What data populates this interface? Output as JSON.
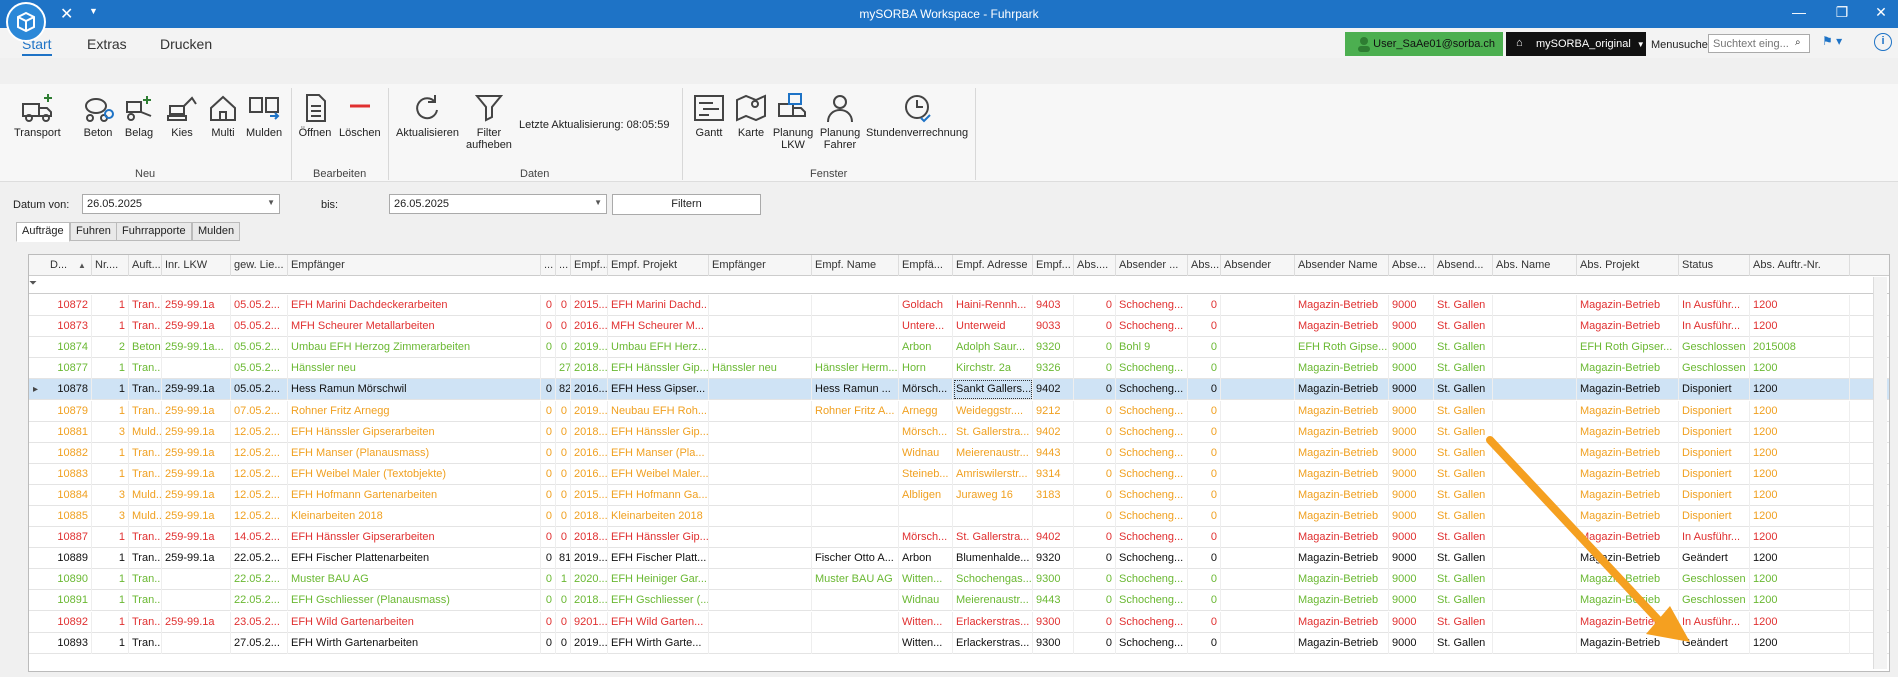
{
  "window": {
    "title": "mySORBA Workspace - Fuhrpark",
    "min_icon": "minimize-icon",
    "restore_icon": "restore-icon",
    "close_icon": "close-icon"
  },
  "ribbon_tabs": [
    "Start",
    "Extras",
    "Drucken"
  ],
  "topbar": {
    "user": "User_SaAe01@sorba.ch",
    "workspace": "mySORBA_original",
    "menusuche_label": "Menusuche",
    "search_placeholder": "Suchtext eing..."
  },
  "ribbon": {
    "neu": {
      "label": "Neu",
      "buttons": [
        "Transport",
        "Beton",
        "Belag",
        "Kies",
        "Multi",
        "Mulden"
      ]
    },
    "bearbeiten": {
      "label": "Bearbeiten",
      "buttons": [
        "Öffnen",
        "Löschen"
      ]
    },
    "daten": {
      "label": "Daten",
      "buttons": [
        "Aktualisieren",
        "Filter aufheben"
      ],
      "last_update_label": "Letzte Aktualisierung:",
      "last_update_time": "08:05:59"
    },
    "fenster": {
      "label": "Fenster",
      "buttons": [
        "Gantt",
        "Karte",
        "Planung LKW",
        "Planung Fahrer",
        "Stundenverrechnung"
      ]
    }
  },
  "filter": {
    "from_label": "Datum von:",
    "from_value": "26.05.2025",
    "to_label": "bis:",
    "to_value": "26.05.2025",
    "button": "Filtern"
  },
  "doc_tabs": [
    "Aufträge",
    "Fuhren",
    "Fuhrrapporte",
    "Mulden"
  ],
  "grid": {
    "columns": [
      "D...",
      "Nr....",
      "Auft...",
      "Inr. LKW",
      "gew. Lie...",
      "Empfänger",
      "...",
      "...",
      "Empf....",
      "Empf. Projekt",
      "Empfänger",
      "Empf. Name",
      "Empfä...",
      "Empf. Adresse",
      "Empf...",
      "Abs....",
      "Absender ...",
      "Abs...",
      "Absender",
      "Absender Name",
      "Abse...",
      "Absend...",
      "Abs. Name",
      "Abs. Projekt",
      "Status",
      "Abs. Auftr.-Nr."
    ],
    "rows": [
      {
        "color": "red",
        "c": [
          "10872",
          "1",
          "Tran...",
          "259-99.1a",
          "05.05.2...",
          "EFH Marini Dachdeckerarbeiten",
          "0",
          "0",
          "2015...",
          "EFH Marini Dachd...",
          "",
          "",
          "Goldach",
          "Haini-Rennh...",
          "9403",
          "0",
          "Schocheng...",
          "0",
          "",
          "Magazin-Betrieb",
          "9000",
          "St. Gallen",
          "",
          "Magazin-Betrieb",
          "In Ausführ...",
          "1200"
        ]
      },
      {
        "color": "red",
        "c": [
          "10873",
          "1",
          "Tran...",
          "259-99.1a",
          "05.05.2...",
          "MFH Scheurer Metallarbeiten",
          "0",
          "0",
          "2016...",
          "MFH Scheurer M...",
          "",
          "",
          "Untere...",
          "Unterweid",
          "9033",
          "0",
          "Schocheng...",
          "0",
          "",
          "Magazin-Betrieb",
          "9000",
          "St. Gallen",
          "",
          "Magazin-Betrieb",
          "In Ausführ...",
          "1200"
        ]
      },
      {
        "color": "green",
        "c": [
          "10874",
          "2",
          "Beton",
          "259-99.1a...",
          "05.05.2...",
          "Umbau EFH Herzog Zimmerarbeiten",
          "0",
          "0",
          "2019...",
          "Umbau EFH Herz...",
          "",
          "",
          "Arbon",
          "Adolph Saur...",
          "9320",
          "0",
          "Bohl 9",
          "0",
          "",
          "EFH Roth Gipse...",
          "9000",
          "St. Gallen",
          "",
          "EFH Roth Gipser...",
          "Geschlossen",
          "2015008"
        ]
      },
      {
        "color": "green",
        "c": [
          "10877",
          "1",
          "Tran...",
          "",
          "05.05.2...",
          "Hänssler neu",
          "",
          "27",
          "2018...",
          "EFH Hänssler Gip...",
          "Hänssler neu",
          "Hänssler Herm...",
          "Horn",
          "Kirchstr. 2a",
          "9326",
          "0",
          "Schocheng...",
          "0",
          "",
          "Magazin-Betrieb",
          "9000",
          "St. Gallen",
          "",
          "Magazin-Betrieb",
          "Geschlossen",
          "1200"
        ]
      },
      {
        "color": "black",
        "selected": true,
        "c": [
          "10878",
          "1",
          "Tran...",
          "259-99.1a",
          "05.05.2...",
          "Hess Ramun Mörschwil",
          "0",
          "82",
          "2016...",
          "EFH Hess Gipser...",
          "",
          "Hess Ramun ...",
          "Mörsch...",
          "Sankt Gallers...",
          "9402",
          "0",
          "Schocheng...",
          "0",
          "",
          "Magazin-Betrieb",
          "9000",
          "St. Gallen",
          "",
          "Magazin-Betrieb",
          "Disponiert",
          "1200"
        ]
      },
      {
        "color": "orange",
        "c": [
          "10879",
          "1",
          "Tran...",
          "259-99.1a",
          "07.05.2...",
          "Rohner Fritz Arnegg",
          "0",
          "0",
          "2019...",
          "Neubau EFH Roh...",
          "",
          "Rohner Fritz A...",
          "Arnegg",
          "Weideggstr....",
          "9212",
          "0",
          "Schocheng...",
          "0",
          "",
          "Magazin-Betrieb",
          "9000",
          "St. Gallen",
          "",
          "Magazin-Betrieb",
          "Disponiert",
          "1200"
        ]
      },
      {
        "color": "orange",
        "c": [
          "10881",
          "3",
          "Muld...",
          "259-99.1a",
          "12.05.2...",
          "EFH Hänssler Gipserarbeiten",
          "0",
          "0",
          "2018...",
          "EFH Hänssler Gip...",
          "",
          "",
          "Mörsch...",
          "St. Gallerstra...",
          "9402",
          "0",
          "Schocheng...",
          "0",
          "",
          "Magazin-Betrieb",
          "9000",
          "St. Gallen",
          "",
          "Magazin-Betrieb",
          "Disponiert",
          "1200"
        ]
      },
      {
        "color": "orange",
        "c": [
          "10882",
          "1",
          "Tran...",
          "259-99.1a",
          "12.05.2...",
          "EFH Manser (Planausmass)",
          "0",
          "0",
          "2016...",
          "EFH Manser (Pla...",
          "",
          "",
          "Widnau",
          "Meierenaustr...",
          "9443",
          "0",
          "Schocheng...",
          "0",
          "",
          "Magazin-Betrieb",
          "9000",
          "St. Gallen",
          "",
          "Magazin-Betrieb",
          "Disponiert",
          "1200"
        ]
      },
      {
        "color": "orange",
        "c": [
          "10883",
          "1",
          "Tran...",
          "259-99.1a",
          "12.05.2...",
          "EFH Weibel Maler (Textobjekte)",
          "0",
          "0",
          "2016...",
          "EFH Weibel Maler...",
          "",
          "",
          "Steineb...",
          "Amriswilerstr...",
          "9314",
          "0",
          "Schocheng...",
          "0",
          "",
          "Magazin-Betrieb",
          "9000",
          "St. Gallen",
          "",
          "Magazin-Betrieb",
          "Disponiert",
          "1200"
        ]
      },
      {
        "color": "orange",
        "c": [
          "10884",
          "3",
          "Muld...",
          "259-99.1a",
          "12.05.2...",
          "EFH Hofmann Gartenarbeiten",
          "0",
          "0",
          "2015...",
          "EFH Hofmann Ga...",
          "",
          "",
          "Albligen",
          "Juraweg 16",
          "3183",
          "0",
          "Schocheng...",
          "0",
          "",
          "Magazin-Betrieb",
          "9000",
          "St. Gallen",
          "",
          "Magazin-Betrieb",
          "Disponiert",
          "1200"
        ]
      },
      {
        "color": "orange",
        "c": [
          "10885",
          "3",
          "Muld...",
          "259-99.1a",
          "12.05.2...",
          "Kleinarbeiten 2018",
          "0",
          "0",
          "2018...",
          "Kleinarbeiten 2018",
          "",
          "",
          "",
          "",
          "",
          "0",
          "Schocheng...",
          "0",
          "",
          "Magazin-Betrieb",
          "9000",
          "St. Gallen",
          "",
          "Magazin-Betrieb",
          "Disponiert",
          "1200"
        ]
      },
      {
        "color": "red",
        "c": [
          "10887",
          "1",
          "Tran...",
          "259-99.1a",
          "14.05.2...",
          "EFH Hänssler Gipserarbeiten",
          "0",
          "0",
          "2018...",
          "EFH Hänssler Gip...",
          "",
          "",
          "Mörsch...",
          "St. Gallerstra...",
          "9402",
          "0",
          "Schocheng...",
          "0",
          "",
          "Magazin-Betrieb",
          "9000",
          "St. Gallen",
          "",
          "Magazin-Betrieb",
          "In Ausführ...",
          "1200"
        ]
      },
      {
        "color": "black",
        "c": [
          "10889",
          "1",
          "Tran...",
          "259-99.1a",
          "22.05.2...",
          "EFH Fischer Plattenarbeiten",
          "0",
          "81",
          "2019...",
          "EFH Fischer Platt...",
          "",
          "Fischer Otto A...",
          "Arbon",
          "Blumenhalde...",
          "9320",
          "0",
          "Schocheng...",
          "0",
          "",
          "Magazin-Betrieb",
          "9000",
          "St. Gallen",
          "",
          "Magazin-Betrieb",
          "Geändert",
          "1200"
        ]
      },
      {
        "color": "green",
        "c": [
          "10890",
          "1",
          "Tran...",
          "",
          "22.05.2...",
          "Muster BAU AG",
          "0",
          "1",
          "2020...",
          "EFH Heiniger Gar...",
          "",
          "Muster BAU AG",
          "Witten...",
          "Schochengas...",
          "9300",
          "0",
          "Schocheng...",
          "0",
          "",
          "Magazin-Betrieb",
          "9000",
          "St. Gallen",
          "",
          "Magazin-Betrieb",
          "Geschlossen",
          "1200"
        ]
      },
      {
        "color": "green",
        "c": [
          "10891",
          "1",
          "Tran...",
          "",
          "22.05.2...",
          "EFH Gschliesser (Planausmass)",
          "0",
          "0",
          "2018...",
          "EFH Gschliesser (...",
          "",
          "",
          "Widnau",
          "Meierenaustr...",
          "9443",
          "0",
          "Schocheng...",
          "0",
          "",
          "Magazin-Betrieb",
          "9000",
          "St. Gallen",
          "",
          "Magazin-Betrieb",
          "Geschlossen",
          "1200"
        ]
      },
      {
        "color": "red",
        "c": [
          "10892",
          "1",
          "Tran...",
          "259-99.1a",
          "23.05.2...",
          "EFH Wild Gartenarbeiten",
          "0",
          "0",
          "9201...",
          "EFH Wild Garten...",
          "",
          "",
          "Witten...",
          "Erlackerstras...",
          "9300",
          "0",
          "Schocheng...",
          "0",
          "",
          "Magazin-Betrieb",
          "9000",
          "St. Gallen",
          "",
          "Magazin-Betrieb",
          "In Ausführ...",
          "1200"
        ]
      },
      {
        "color": "black",
        "c": [
          "10893",
          "1",
          "Tran...",
          "",
          "27.05.2...",
          "EFH Wirth Gartenarbeiten",
          "0",
          "0",
          "2019...",
          "EFH Wirth Garte...",
          "",
          "",
          "Witten...",
          "Erlackerstras...",
          "9300",
          "0",
          "Schocheng...",
          "0",
          "",
          "Magazin-Betrieb",
          "9000",
          "St. Gallen",
          "",
          "Magazin-Betrieb",
          "Geändert",
          "1200"
        ]
      }
    ]
  },
  "colors": {
    "red": "#e03030",
    "green": "#6ab832",
    "orange": "#f0a020",
    "black": "#111111",
    "arrow": "#f5a020",
    "accent": "#1e73c6"
  }
}
